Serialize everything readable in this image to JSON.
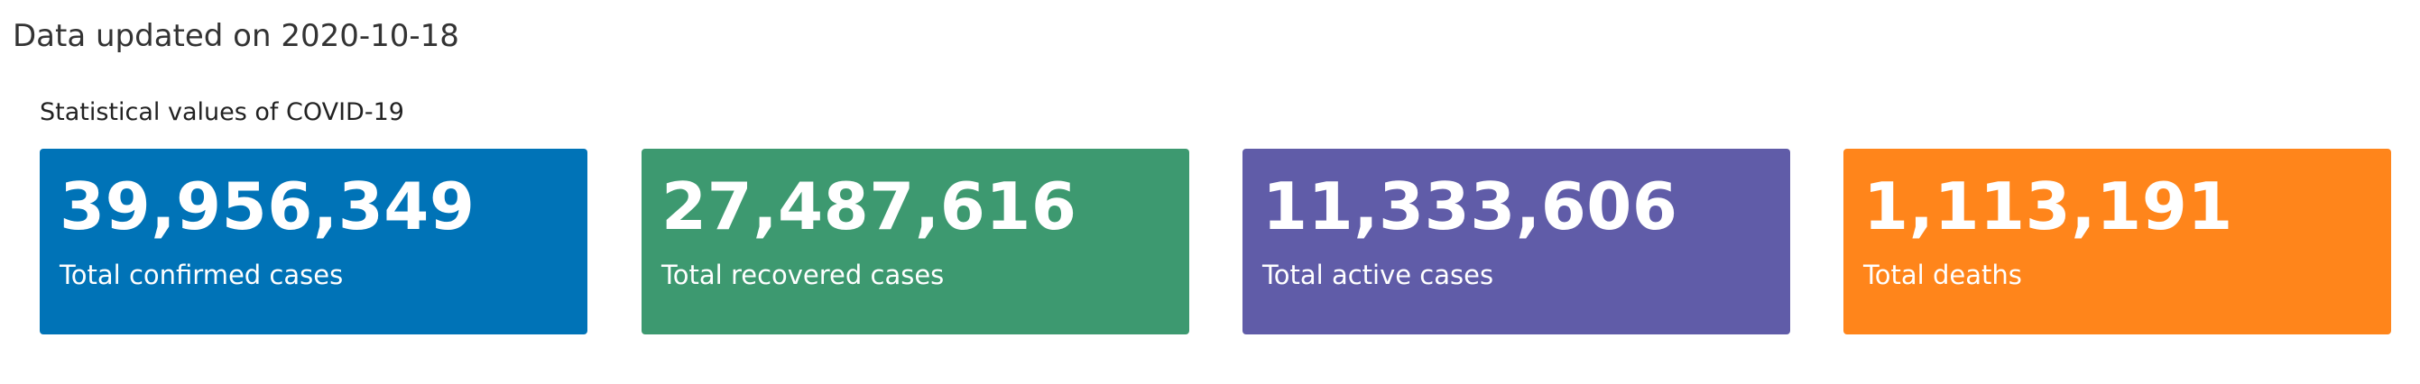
{
  "updated_text": "Data updated on 2020-10-18",
  "section_title": "Statistical values of COVID-19",
  "cards": [
    {
      "value": "39,956,349",
      "label": "Total confirmed cases",
      "color": "#0073b7"
    },
    {
      "value": "27,487,616",
      "label": "Total recovered cases",
      "color": "#3d9970"
    },
    {
      "value": "11,333,606",
      "label": "Total active cases",
      "color": "#605ca8"
    },
    {
      "value": "1,113,191",
      "label": "Total deaths",
      "color": "#ff851b"
    }
  ]
}
